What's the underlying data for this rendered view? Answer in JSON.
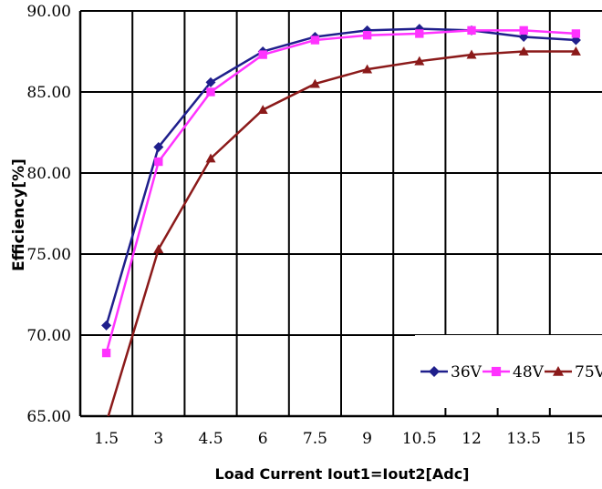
{
  "chart_data": {
    "type": "line",
    "xlabel": "Load Current Iout1=Iout2[Adc]",
    "ylabel": "Efficiency[%]",
    "categories": [
      "1.5",
      "3",
      "4.5",
      "6",
      "7.5",
      "9",
      "10.5",
      "12",
      "13.5",
      "15"
    ],
    "y_ticks": [
      "90.00",
      "85.00",
      "80.00",
      "75.00",
      "70.00",
      "65.00"
    ],
    "ylim": [
      65,
      90
    ],
    "grid": true,
    "legend_position": "bottom-right",
    "series": [
      {
        "name": "36V",
        "color": "#1f1f8c",
        "marker": "diamond",
        "values": [
          70.6,
          81.6,
          85.6,
          87.5,
          88.4,
          88.8,
          88.9,
          88.8,
          88.4,
          88.2
        ]
      },
      {
        "name": "48V",
        "color": "#ff33ff",
        "marker": "square",
        "values": [
          68.9,
          80.7,
          85.0,
          87.3,
          88.2,
          88.5,
          88.6,
          88.8,
          88.8,
          88.6
        ]
      },
      {
        "name": "75V",
        "color": "#8b1a1a",
        "marker": "triangle",
        "values": [
          64.6,
          75.3,
          80.9,
          83.9,
          85.5,
          86.4,
          86.9,
          87.3,
          87.5,
          87.5
        ]
      }
    ]
  }
}
